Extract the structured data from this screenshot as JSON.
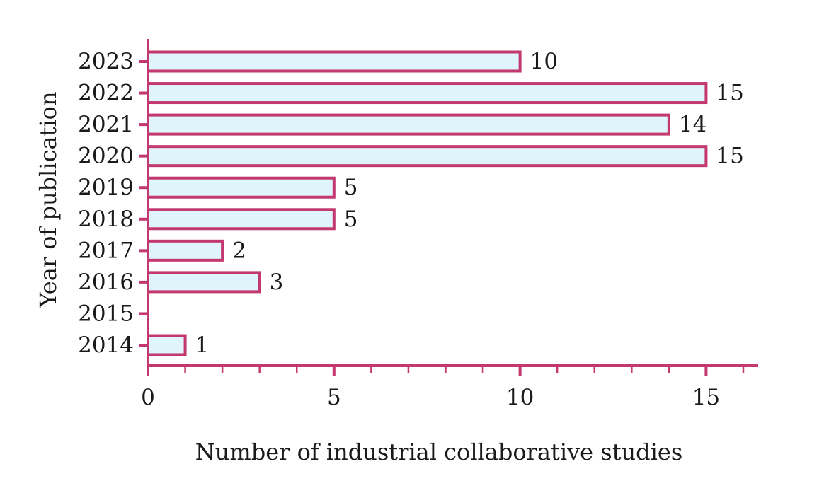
{
  "chart_data": {
    "type": "bar",
    "orientation": "horizontal",
    "categories": [
      "2014",
      "2015",
      "2016",
      "2017",
      "2018",
      "2019",
      "2020",
      "2021",
      "2022",
      "2023"
    ],
    "values": [
      1,
      0,
      3,
      2,
      5,
      5,
      15,
      14,
      15,
      10
    ],
    "data_labels": [
      "1",
      "",
      "3",
      "2",
      "5",
      "5",
      "15",
      "14",
      "15",
      "10"
    ],
    "xlabel": "Number of industrial collaborative studies",
    "ylabel": "Year of publication",
    "xlim": [
      0,
      16.4
    ],
    "x_ticks": [
      0,
      5,
      10,
      15
    ],
    "x_tick_labels": [
      "0",
      "5",
      "10",
      "15"
    ],
    "x_minor_step": 1,
    "grid": false,
    "legend": "none",
    "colors": {
      "bar_fill": "#dff4fb",
      "bar_edge": "#c2386f",
      "axis": "#c2386f",
      "text": "#1a1a1a"
    }
  }
}
